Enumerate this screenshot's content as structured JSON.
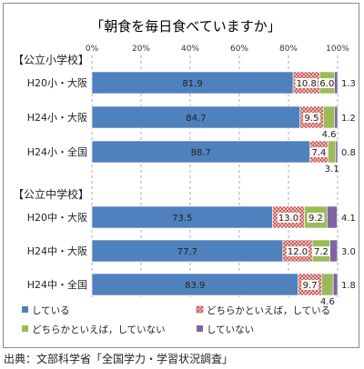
{
  "chart_data": {
    "type": "bar",
    "stacked": "percent",
    "orientation": "horizontal",
    "title": "「朝食を毎日食べていますか」",
    "xlim": [
      0,
      100
    ],
    "x_ticks": [
      "0%",
      "20%",
      "40%",
      "60%",
      "80%",
      "100%"
    ],
    "grid": "vertical dashed",
    "legend_position": "bottom",
    "groups": [
      {
        "label": "【公立小学校】",
        "categories": [
          "H20小・大阪",
          "H24小・大阪",
          "H24小・全国"
        ]
      },
      {
        "label": "【公立中学校】",
        "categories": [
          "H20中・大阪",
          "H24中・大阪",
          "H24中・全国"
        ]
      }
    ],
    "categories": [
      "H20小・大阪",
      "H24小・大阪",
      "H24小・全国",
      "H20中・大阪",
      "H24中・大阪",
      "H24中・全国"
    ],
    "series": [
      {
        "name": "している",
        "color": "#4f81bd",
        "pattern": "solid",
        "values": [
          81.9,
          84.7,
          88.7,
          73.5,
          77.7,
          83.9
        ]
      },
      {
        "name": "どちらかといえば，している",
        "color": "#d9534f",
        "pattern": "crosshatch",
        "values": [
          10.8,
          9.5,
          7.4,
          13.0,
          12.0,
          9.7
        ]
      },
      {
        "name": "どちらかといえば，していない",
        "color": "#9bbb59",
        "pattern": "solid",
        "values": [
          6.0,
          4.6,
          3.1,
          9.2,
          7.2,
          4.6
        ]
      },
      {
        "name": "していない",
        "color": "#8064a2",
        "pattern": "solid",
        "values": [
          1.3,
          1.2,
          0.8,
          4.1,
          3.0,
          1.8
        ]
      }
    ]
  },
  "source": "出典：文部科学省「全国学力・学習状況調査」"
}
